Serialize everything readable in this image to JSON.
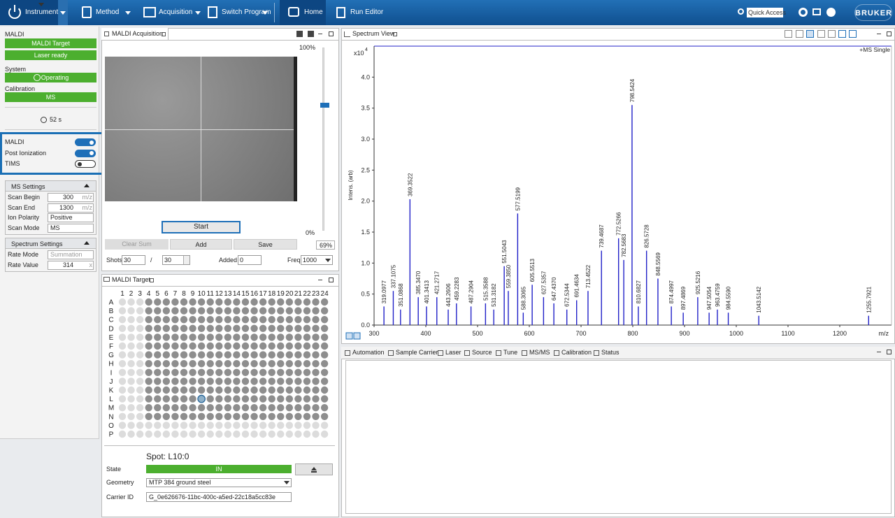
{
  "toolbar": {
    "instrument": "Instrument",
    "method": "Method",
    "acquisition": "Acquisition",
    "switch_program": "Switch Program",
    "home": "Home",
    "run_editor": "Run Editor",
    "quick_access": "Quick Access",
    "logo": "BRUKER"
  },
  "status": {
    "maldi_label": "MALDI",
    "maldi_target": "MALDI Target",
    "laser": "Laser ready",
    "system_label": "System",
    "system_state": "Operating",
    "calibration_label": "Calibration",
    "calibration_state": "MS",
    "timer": "52 s"
  },
  "toggles": [
    {
      "label": "MALDI",
      "on": true
    },
    {
      "label": "Post Ionization",
      "on": true
    },
    {
      "label": "TIMS",
      "on": false
    }
  ],
  "ms_settings": {
    "title": "MS Settings",
    "rows": [
      {
        "label": "Scan Begin",
        "value": 300,
        "unit": "m/z"
      },
      {
        "label": "Scan End",
        "value": 1300,
        "unit": "m/z"
      },
      {
        "label": "Ion Polarity",
        "value": "Positive"
      },
      {
        "label": "Scan Mode",
        "value": "MS"
      }
    ]
  },
  "spectrum_settings": {
    "title": "Spectrum Settings",
    "rows": [
      {
        "label": "Rate Mode",
        "value": "Summation"
      },
      {
        "label": "Rate Value",
        "value": 314,
        "unit": "x"
      }
    ]
  },
  "acquisition": {
    "title": "MALDI Acquisition",
    "slider_top": "100%",
    "slider_bottom": "0%",
    "laser_power": "69%",
    "start": "Start",
    "clear_sum": "Clear Sum",
    "add": "Add",
    "save": "Save",
    "shots_label": "Shots",
    "shots": 30,
    "shots_sep": "/",
    "shots_total": 30,
    "added_label": "Added",
    "added": 0,
    "freq_label": "Freq",
    "freq": 1000
  },
  "target": {
    "title": "MALDI Target",
    "columns": [
      1,
      2,
      3,
      4,
      5,
      6,
      7,
      8,
      9,
      10,
      11,
      12,
      13,
      14,
      15,
      16,
      17,
      18,
      19,
      20,
      21,
      22,
      23,
      24
    ],
    "rows": [
      "A",
      "B",
      "C",
      "D",
      "E",
      "F",
      "G",
      "H",
      "I",
      "J",
      "K",
      "L",
      "M",
      "N",
      "O",
      "P"
    ],
    "spot": "Spot: L10:0",
    "state_label": "State",
    "state": "IN",
    "geometry_label": "Geometry",
    "geometry": "MTP 384 ground steel",
    "carrier_label": "Carrier ID",
    "carrier_id": "G_0e626676-11bc-400c-a5ed-22c18a5cc83e"
  },
  "spectrum_view": {
    "title": "Spectrum View"
  },
  "chart_data": {
    "type": "spectrum",
    "legend": "+MS Single",
    "y_label": "Intens. (arb)",
    "x_label": "m/z",
    "y_scale": "x10",
    "y_scale_exponent": "4",
    "color": "#2020c8",
    "xlim": [
      300,
      1300
    ],
    "xticks": [
      300,
      400,
      500,
      600,
      700,
      800,
      900,
      1000,
      1100,
      1200
    ],
    "ylim": [
      0,
      4.5
    ],
    "yticks": [
      {
        "value": 0,
        "label": "0.0"
      },
      0.5,
      {
        "value": 1,
        "label": "1.0"
      },
      1.5,
      {
        "value": 2,
        "label": "2.0"
      },
      2.5,
      {
        "value": 3,
        "label": "3.0"
      },
      3.5,
      {
        "value": 4,
        "label": "4.0"
      }
    ],
    "x": [
      319.0977,
      337.1075,
      351.0868,
      369.3522,
      385.347,
      401.3413,
      421.2717,
      443.2606,
      459.2283,
      487.2904,
      515.3588,
      531.3182,
      551.5043,
      559.385,
      577.5199,
      588.3065,
      605.5513,
      627.5357,
      647.437,
      672.5344,
      691.4634,
      713.4522,
      739.4687,
      772.5266,
      782.5683,
      798.5424,
      810.6827,
      826.5728,
      848.5569,
      874.4997,
      897.4869,
      925.5216,
      947.5054,
      963.4759,
      984.559,
      1043.5142,
      1255.7921
    ],
    "peak_labels": [
      "319.0977",
      "337.1075",
      "351.0868",
      "369.3522",
      "385.3470",
      "401.3413",
      "421.2717",
      "443.2606",
      "459.2283",
      "487.2904",
      "515.3588",
      "531.3182",
      "551.5043",
      "559.3850",
      "577.5199",
      "588.3065",
      "605.5513",
      "627.5357",
      "647.4370",
      "672.5344",
      "691.4634",
      "713.4522",
      "739.4687",
      "772.5266",
      "782.5683",
      "798.5424",
      "810.6827",
      "826.5728",
      "848.5569",
      "874.4997",
      "897.4869",
      "925.5216",
      "947.5054",
      "963.4759",
      "984.5590",
      "1043.5142",
      "1255.7921"
    ],
    "values": [
      0.3,
      0.55,
      0.25,
      2.03,
      0.45,
      0.3,
      0.45,
      0.25,
      0.35,
      0.3,
      0.35,
      0.25,
      0.95,
      0.55,
      1.8,
      0.2,
      0.65,
      0.45,
      0.35,
      0.25,
      0.4,
      0.55,
      1.2,
      1.4,
      1.05,
      3.55,
      0.3,
      1.2,
      0.75,
      0.3,
      0.2,
      0.45,
      0.2,
      0.25,
      0.2,
      0.15,
      0.15
    ]
  },
  "bottom_tabs": [
    "Automation",
    "Sample Carrier",
    "Laser",
    "Source",
    "Tune",
    "MS/MS",
    "Calibration",
    "Status"
  ]
}
